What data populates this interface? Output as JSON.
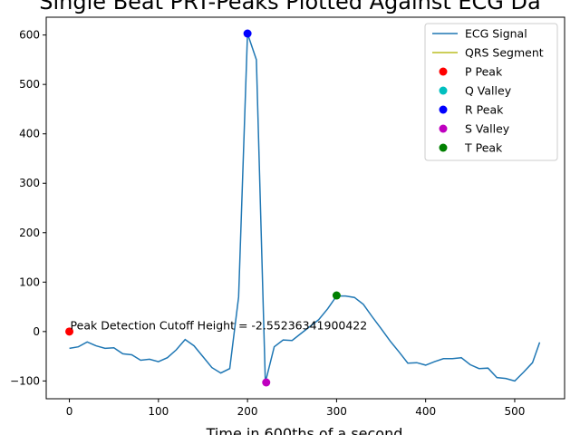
{
  "chart_data": {
    "type": "line",
    "title": "Single Beat PRT-Peaks Plotted Against ECG Da",
    "xlabel": "Time in 600ths of a second",
    "ylabel": "",
    "xlim": [
      -26,
      556
    ],
    "ylim": [
      -136,
      636
    ],
    "xticks": [
      0,
      100,
      200,
      300,
      400,
      500
    ],
    "yticks": [
      -100,
      0,
      100,
      200,
      300,
      400,
      500,
      600
    ],
    "grid": false,
    "legend_position": "top-right",
    "annotation": "Peak Detection Cutoff Height = -2.55236341900422",
    "annotation_at": {
      "x": 0,
      "y": 2
    },
    "series": [
      {
        "name": "ECG Signal",
        "color": "#1f77b4",
        "style": "line",
        "x": [
          0,
          10,
          20,
          30,
          40,
          50,
          60,
          70,
          80,
          90,
          100,
          110,
          120,
          130,
          140,
          150,
          160,
          170,
          180,
          190,
          200,
          210,
          220,
          230,
          240,
          250,
          260,
          270,
          280,
          290,
          300,
          310,
          320,
          330,
          340,
          350,
          360,
          370,
          380,
          390,
          400,
          410,
          420,
          430,
          440,
          450,
          460,
          470,
          480,
          490,
          500,
          510,
          520,
          528
        ],
        "y": [
          -34,
          -31,
          -21,
          -29,
          -34,
          -33,
          -45,
          -47,
          -58,
          -56,
          -61,
          -53,
          -37,
          -16,
          -29,
          -51,
          -73,
          -84,
          -75,
          70,
          603,
          550,
          -103,
          -31,
          -17,
          -18,
          -4,
          10,
          24,
          46,
          72,
          72,
          69,
          55,
          30,
          6,
          -19,
          -41,
          -64,
          -63,
          -68,
          -61,
          -55,
          -55,
          -53,
          -67,
          -75,
          -74,
          -93,
          -95,
          -100,
          -82,
          -63,
          -22
        ]
      },
      {
        "name": "QRS Segment",
        "color": "#bcbd22",
        "style": "line",
        "x": [],
        "y": []
      },
      {
        "name": "P Peak",
        "color": "#ff0000",
        "style": "marker",
        "x": [
          0
        ],
        "y": [
          0
        ]
      },
      {
        "name": "Q Valley",
        "color": "#00bfbf",
        "style": "marker",
        "x": [],
        "y": []
      },
      {
        "name": "R Peak",
        "color": "#0000ff",
        "style": "marker",
        "x": [
          200
        ],
        "y": [
          603
        ]
      },
      {
        "name": "S Valley",
        "color": "#bf00bf",
        "style": "marker",
        "x": [
          221
        ],
        "y": [
          -103
        ]
      },
      {
        "name": "T Peak",
        "color": "#008000",
        "style": "marker",
        "x": [
          300
        ],
        "y": [
          73
        ]
      }
    ]
  }
}
